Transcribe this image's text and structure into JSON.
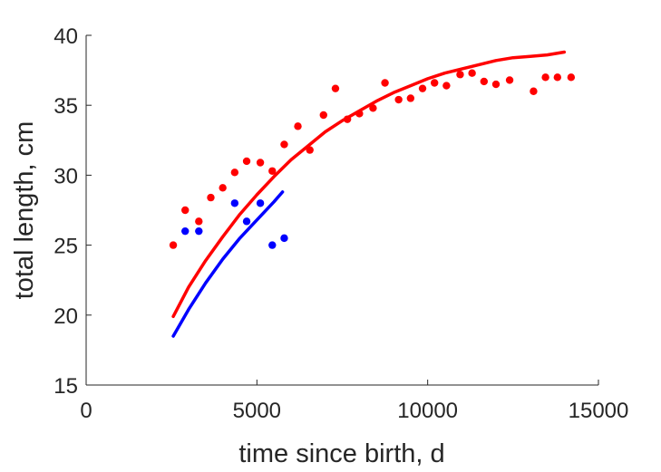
{
  "chart_data": {
    "type": "scatter",
    "title": "",
    "xlabel": "time since birth, d",
    "ylabel": "total length, cm",
    "xlim": [
      0,
      15000
    ],
    "ylim": [
      15,
      40
    ],
    "xticks": [
      0,
      5000,
      10000,
      15000
    ],
    "xtick_labels": [
      "0",
      "5000",
      "10000",
      "15000"
    ],
    "yticks": [
      15,
      20,
      25,
      30,
      35,
      40
    ],
    "ytick_labels": [
      "15",
      "20",
      "25",
      "30",
      "35",
      "40"
    ],
    "grid": false,
    "series": [
      {
        "kind": "points",
        "color": "#ff0000",
        "x": [
          2550,
          2900,
          3300,
          3650,
          4000,
          4350,
          4700,
          5100,
          5450,
          5800,
          6200,
          6550,
          6950,
          7300,
          7650,
          8000,
          8400,
          8750,
          9150,
          9500,
          9850,
          10200,
          10550,
          10950,
          11300,
          11650,
          12000,
          12400,
          13100,
          13450,
          13800,
          14200
        ],
        "y": [
          25.0,
          27.5,
          26.7,
          28.4,
          29.1,
          30.2,
          31.0,
          30.9,
          30.3,
          32.2,
          33.5,
          31.8,
          34.3,
          36.2,
          34.0,
          34.4,
          34.8,
          36.6,
          35.4,
          35.5,
          36.2,
          36.6,
          36.4,
          37.2,
          37.3,
          36.7,
          36.5,
          36.8,
          36.0,
          37.0,
          37.0,
          37.0
        ]
      },
      {
        "kind": "points",
        "color": "#0000ff",
        "x": [
          2900,
          3300,
          4350,
          4700,
          5100,
          5450,
          5800
        ],
        "y": [
          26.0,
          26.0,
          28.0,
          26.7,
          28.0,
          25.0,
          25.5
        ]
      },
      {
        "kind": "line",
        "color": "#ff0000",
        "x": [
          2550,
          3000,
          3500,
          4000,
          4500,
          5000,
          5500,
          6000,
          6500,
          7000,
          7500,
          8000,
          8500,
          9000,
          9500,
          10000,
          10500,
          11000,
          11500,
          12000,
          12500,
          13000,
          13500,
          14000
        ],
        "y": [
          19.9,
          22.0,
          23.9,
          25.6,
          27.2,
          28.6,
          29.9,
          31.1,
          32.1,
          33.1,
          33.9,
          34.6,
          35.3,
          35.9,
          36.4,
          36.9,
          37.3,
          37.6,
          37.9,
          38.2,
          38.4,
          38.5,
          38.6,
          38.8
        ]
      },
      {
        "kind": "line",
        "color": "#0000ff",
        "x": [
          2550,
          3000,
          3500,
          4000,
          4500,
          5000,
          5500,
          5750
        ],
        "y": [
          18.5,
          20.4,
          22.3,
          24.0,
          25.5,
          26.8,
          28.1,
          28.8
        ]
      }
    ]
  }
}
